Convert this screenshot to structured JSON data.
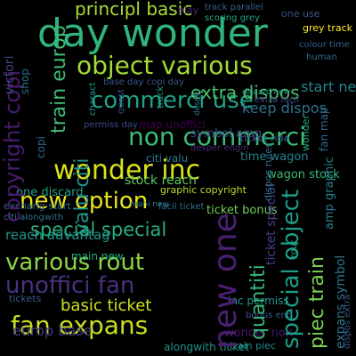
{
  "background_color": "#000000",
  "words": [
    {
      "text": "day wonder",
      "color": "#2fb47c"
    },
    {
      "text": "object various",
      "color": "#a2da37"
    },
    {
      "text": "commerci use",
      "color": "#1fa287"
    },
    {
      "text": "non commerci",
      "color": "#3dbc74"
    },
    {
      "text": "wonder inc",
      "color": "#d8e219"
    },
    {
      "text": "new option",
      "color": "#eae51a"
    },
    {
      "text": "special special",
      "color": "#27ad81"
    },
    {
      "text": "various rout",
      "color": "#8ed645"
    },
    {
      "text": "unoffici fan",
      "color": "#46327e"
    },
    {
      "text": "fan expans",
      "color": "#c8e020"
    },
    {
      "text": "basic ticket",
      "color": "#d0e11c"
    },
    {
      "text": "principl basic",
      "color": "#a8db34"
    },
    {
      "text": "extra dispos",
      "color": "#4ac16d"
    },
    {
      "text": "keep dispos",
      "color": "#2e6f8e"
    },
    {
      "text": "stock reach",
      "color": "#5ec962"
    },
    {
      "text": "wagon stock",
      "color": "#3aba76"
    },
    {
      "text": "time wagon",
      "color": "#26828e"
    },
    {
      "text": "citi valu",
      "color": "#2a788e"
    },
    {
      "text": "one use",
      "color": "#3b528b"
    },
    {
      "text": "grey track",
      "color": "#fde725"
    },
    {
      "text": "ticket ride",
      "color": "#365d8d"
    },
    {
      "text": "track parallel",
      "color": "#33638d"
    },
    {
      "text": "europ base",
      "color": "#443983"
    },
    {
      "text": "reach advantag",
      "color": "#1f948c"
    },
    {
      "text": "train piec",
      "color": "#23898e"
    },
    {
      "text": "one discard",
      "color": "#20a386"
    },
    {
      "text": "graphic copyright",
      "color": "#b8de29"
    },
    {
      "text": "ticket bonus",
      "color": "#6ece58"
    },
    {
      "text": "facil ticket",
      "color": "#2c728e"
    },
    {
      "text": "citi alongwith",
      "color": "#2d708e"
    },
    {
      "text": "exchang start",
      "color": "#31688e"
    },
    {
      "text": "inc permiss",
      "color": "#1e9b8a"
    },
    {
      "text": "bonus end",
      "color": "#375b8d"
    },
    {
      "text": "wonder non",
      "color": "#48186a"
    },
    {
      "text": "alongwith ticket",
      "color": "#21918c"
    },
    {
      "text": "permiss day",
      "color": "#3e4989"
    },
    {
      "text": "map unoffici",
      "color": "#440154"
    },
    {
      "text": "symbol amp",
      "color": "#3f4788"
    },
    {
      "text": "desper engin",
      "color": "#482878"
    },
    {
      "text": "extra facil",
      "color": "#414487"
    },
    {
      "text": "mani new",
      "color": "#2a788e"
    },
    {
      "text": "start new",
      "color": "#25848e"
    },
    {
      "text": "discard new",
      "color": "#1fa088"
    },
    {
      "text": "scoring grey",
      "color": "#21a685"
    },
    {
      "text": "colour time",
      "color": "#355f8d"
    },
    {
      "text": "human",
      "color": "#31688e"
    },
    {
      "text": "play",
      "color": "#482475"
    },
    {
      "text": "base day copi day",
      "color": "#3a548c"
    },
    {
      "text": "new one",
      "color": "#482071"
    },
    {
      "text": "quantiti",
      "color": "#35b779"
    },
    {
      "text": "special object",
      "color": "#1e9c89"
    },
    {
      "text": "piec train",
      "color": "#7ad151"
    },
    {
      "text": "ticket special",
      "color": "#424086"
    },
    {
      "text": "copyright copi",
      "color": "#481b6d"
    },
    {
      "text": "copi",
      "color": "#2f6c8e"
    },
    {
      "text": "train europ",
      "color": "#3fbc73"
    },
    {
      "text": "main new",
      "color": "#25ac82"
    },
    {
      "text": "valu citi",
      "color": "#1f968b"
    },
    {
      "text": "amp graphic",
      "color": "#277f8e"
    },
    {
      "text": "expans symbol",
      "color": "#2b758e"
    },
    {
      "text": "dispos rules",
      "color": "#2e6e8e"
    },
    {
      "text": "fan map",
      "color": "#306a8e"
    },
    {
      "text": "victori",
      "color": "#404688"
    },
    {
      "text": "shop",
      "color": "#2d708e"
    },
    {
      "text": "dispos extra",
      "color": "#3b528b"
    },
    {
      "text": "wonder",
      "color": "#22a884"
    },
    {
      "text": "rout",
      "color": "#23a983"
    },
    {
      "text": "track",
      "color": "#1f9a8a"
    },
    {
      "text": "desper",
      "color": "#2c738e"
    },
    {
      "text": "charact",
      "color": "#1e9b8a"
    },
    {
      "text": "quest",
      "color": "#3b528b"
    },
    {
      "text": "tickets",
      "color": "#38588c"
    }
  ]
}
